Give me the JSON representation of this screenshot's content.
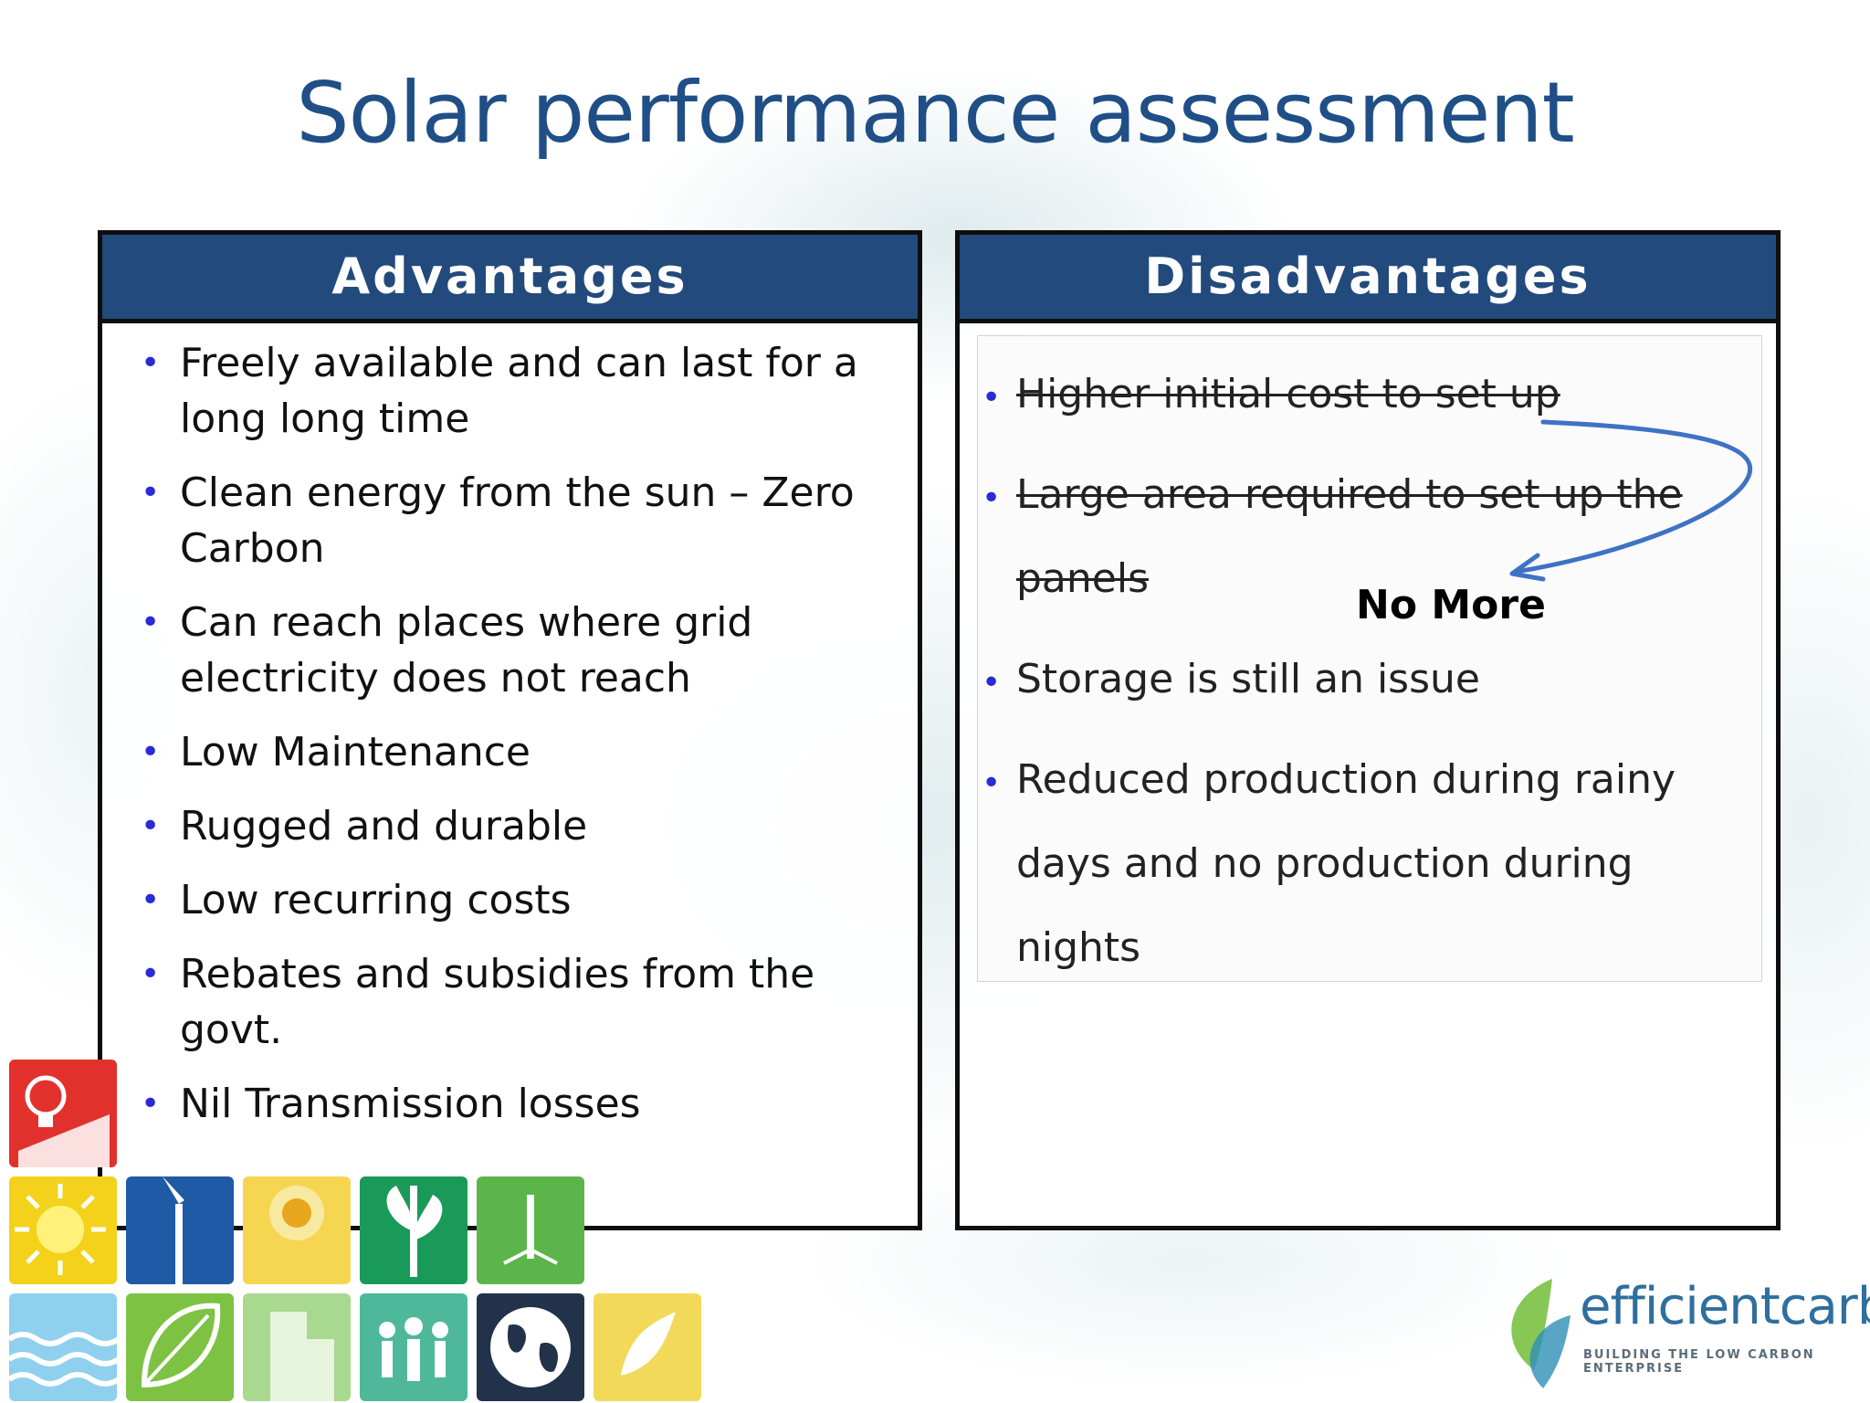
{
  "title": "Solar performance assessment",
  "advantages": {
    "heading": "Advantages",
    "items": [
      "Freely available and can last for a long long time",
      "Clean energy from the sun – Zero Carbon",
      "Can reach places where grid electricity does not reach",
      "Low Maintenance",
      "Rugged and durable",
      "Low recurring costs",
      "Rebates and subsidies from the govt.",
      "Nil Transmission losses"
    ]
  },
  "disadvantages": {
    "heading": "Disadvantages",
    "items": [
      {
        "text": "Higher initial cost to set up",
        "struck": true
      },
      {
        "text": "Large area required to set up the panels",
        "struck": true
      },
      {
        "text": "Storage is still an issue",
        "struck": false
      },
      {
        "text": "Reduced production during rainy days and no production during nights",
        "struck": false
      }
    ],
    "annotation": "No More"
  },
  "logo": {
    "name": "efficientcarbon",
    "tagline": "BUILDING THE LOW CARBON ENTERPRISE"
  },
  "colors": {
    "title": "#1f4f86",
    "header_bg": "#224a7c",
    "bullet": "#2a2ad6",
    "arrow": "#3f72c4"
  },
  "icons": [
    "lightbulb-icon",
    "sun-icon",
    "wind-turbine-icon",
    "sunflower-icon",
    "plant-icon",
    "tree-icon",
    "water-waves-icon",
    "leaf-icon",
    "building-icon",
    "people-icon",
    "globe-icon",
    "swirl-icon"
  ]
}
